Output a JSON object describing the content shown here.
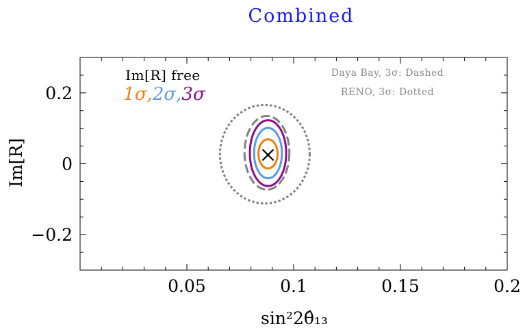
{
  "chart_data": {
    "type": "contour",
    "title": "Combined",
    "xlabel": "sin²2θ̂₁₃",
    "ylabel": "Im[R]",
    "xlim": [
      0.0,
      0.2
    ],
    "ylim": [
      -0.3,
      0.3
    ],
    "xticks": [
      {
        "value": 0.05,
        "label": "0.05"
      },
      {
        "value": 0.1,
        "label": "0.1"
      },
      {
        "value": 0.15,
        "label": "0.15"
      },
      {
        "value": 0.2,
        "label": "0.2"
      }
    ],
    "yticks": [
      {
        "value": 0.2,
        "label": "0.2"
      },
      {
        "value": 0.0,
        "label": "0"
      },
      {
        "value": -0.2,
        "label": "−0.2"
      }
    ],
    "grid": false,
    "best_fit": {
      "x": 0.088,
      "y": 0.025,
      "marker": "×"
    },
    "contours": [
      {
        "name": "1σ",
        "center": [
          0.088,
          0.028
        ],
        "semi_axes": [
          0.0045,
          0.041
        ],
        "color": "#f07f12",
        "style": "solid"
      },
      {
        "name": "2σ",
        "center": [
          0.088,
          0.03
        ],
        "semi_axes": [
          0.0065,
          0.071
        ],
        "color": "#5a98ea",
        "style": "solid"
      },
      {
        "name": "3σ",
        "center": [
          0.088,
          0.03
        ],
        "semi_axes": [
          0.0085,
          0.093
        ],
        "color": "#8b0d8b",
        "style": "solid"
      },
      {
        "name": "Daya Bay, 3σ",
        "center": [
          0.0875,
          0.031
        ],
        "semi_axes": [
          0.0105,
          0.104
        ],
        "color": "#808080",
        "style": "dashed"
      },
      {
        "name": "RENO, 3σ",
        "center": [
          0.0865,
          0.027
        ],
        "semi_axes": [
          0.021,
          0.139
        ],
        "color": "#808080",
        "style": "dotted"
      }
    ],
    "annotations": {
      "free_label": "Im[R] free",
      "sigma_labels": [
        {
          "text": "1σ,",
          "color": "#f07f12"
        },
        {
          "text": "2σ,",
          "color": "#5a98ea"
        },
        {
          "text": "3σ",
          "color": "#8b0d8b"
        }
      ],
      "daya_bay": "Daya Bay, 3σ: Dashed",
      "reno": "RENO, 3σ: Dotted"
    }
  }
}
